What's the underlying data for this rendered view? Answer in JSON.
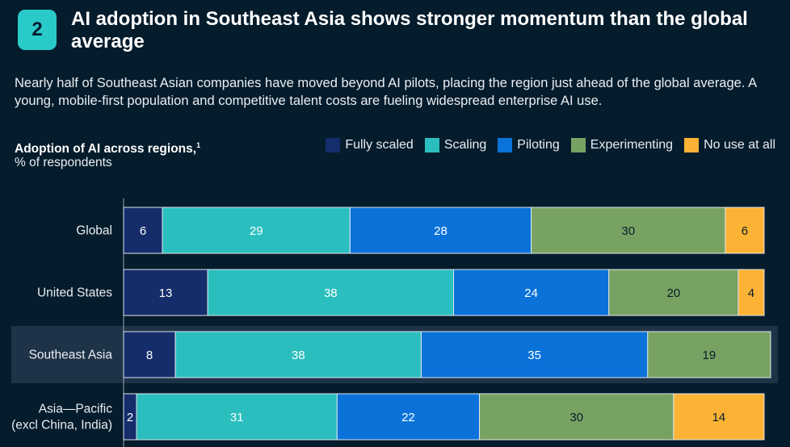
{
  "header": {
    "badge_number": "2",
    "title": "AI adoption in Southeast Asia shows stronger momentum than the global average",
    "subtitle": "Nearly half of Southeast Asian companies have moved beyond AI pilots, placing the region just ahead of the global average. A young, mobile-first population and competitive talent costs are fueling widespread enterprise AI use."
  },
  "chart_data": {
    "type": "bar",
    "orientation": "horizontal",
    "stacked": true,
    "title": "Adoption of AI across regions,",
    "title_footnote": "1",
    "ylabel": "% of respondents",
    "xlim": [
      0,
      100
    ],
    "grid": false,
    "legend_position": "top-right",
    "highlighted_category": "Southeast Asia",
    "categories": [
      [
        "Global"
      ],
      [
        "United States"
      ],
      [
        "Southeast Asia"
      ],
      [
        "Asia—Pacific",
        "(excl China, India)"
      ]
    ],
    "series": [
      {
        "name": "Fully scaled",
        "color": "#152D6B",
        "label_color": "#ffffff",
        "values": [
          6,
          13,
          8,
          2
        ]
      },
      {
        "name": "Scaling",
        "color": "#2ABFBE",
        "label_color": "#ffffff",
        "values": [
          29,
          38,
          38,
          31
        ]
      },
      {
        "name": "Piloting",
        "color": "#0A72D9",
        "label_color": "#ffffff",
        "values": [
          28,
          24,
          35,
          22
        ]
      },
      {
        "name": "Experimenting",
        "color": "#78A262",
        "label_color": "#051C2C",
        "values": [
          30,
          20,
          19,
          30
        ]
      },
      {
        "name": "No use at all",
        "color": "#FCB335",
        "label_color": "#051C2C",
        "values": [
          6,
          4,
          0,
          14
        ]
      }
    ]
  }
}
